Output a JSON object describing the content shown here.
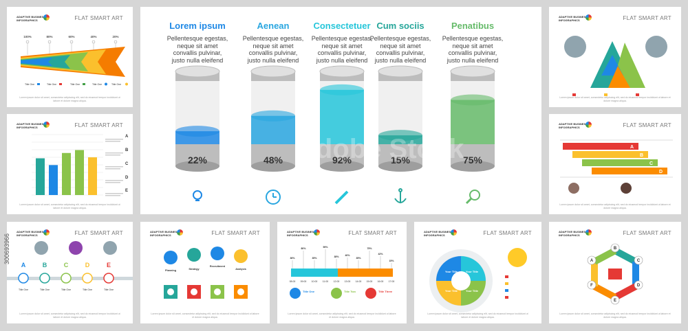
{
  "brand": {
    "logo_line1": "ADAPTIVE BUSINESS",
    "logo_line2": "INFOGRAPHICS",
    "flat_title": "FLAT SMART ART"
  },
  "lorem_footer": "Lorem ipsum dolor sit amet, consectetur adipiscing elit, sed do eiusmod tempor incididunt ut labore et dolore magna aliqua.",
  "title_one": "Title One",
  "colors": {
    "blue": "#1e88e5",
    "sky": "#29b6f6",
    "cyan": "#26c6da",
    "teal": "#26a69a",
    "green": "#66bb6a",
    "yellow": "#fdd835",
    "orange": "#fb8c00",
    "red": "#e53935"
  },
  "top_left": {
    "percents": [
      "100%",
      "80%",
      "60%",
      "40%",
      "20%"
    ]
  },
  "bar_panel": {
    "letters": [
      "A",
      "B",
      "C",
      "D",
      "E"
    ],
    "values": [
      76,
      62,
      87,
      93,
      78
    ]
  },
  "process_panel": {
    "letters": [
      "A",
      "B",
      "C",
      "D",
      "E"
    ]
  },
  "team_panel": {
    "roles": [
      "Planning",
      "Strategy",
      "Recruitment",
      "Analysis"
    ]
  },
  "timeline_panel": {
    "times": [
      "08:00",
      "09:00",
      "10:00",
      "11:00",
      "12:00",
      "13:00",
      "14:00",
      "15:00",
      "16:00",
      "17:00"
    ],
    "values": [
      "36%",
      "80%",
      "35%",
      "59%",
      "38%",
      "40%",
      "35%",
      "75%",
      "42%",
      "15%"
    ],
    "titles": [
      "Title One",
      "Title Two",
      "Title Three"
    ]
  },
  "hex_panel": {
    "letters": [
      "A",
      "B",
      "C",
      "D",
      "E",
      "F"
    ]
  },
  "step_panel": {
    "letters": [
      "A",
      "B",
      "C",
      "D"
    ]
  },
  "wheel_panel": {
    "center": "Your Title"
  },
  "cylinders": [
    {
      "title": "Lorem ipsum",
      "desc": "Pellentesque egestas, neque sit amet convallis pulvinar, justo nulla eleifend augue.",
      "value": 22,
      "label": "22%",
      "color": "#1e88e5",
      "icon": "lightbulb-icon"
    },
    {
      "title": "Aenean",
      "desc": "Pellentesque egestas, neque sit amet convallis pulvinar, justo nulla eleifend augue.",
      "value": 48,
      "label": "48%",
      "color": "#29a6e0",
      "icon": "clock-icon"
    },
    {
      "title": "Consectetuer",
      "desc": "Pellentesque egestas, neque sit amet convallis pulvinar, justo nulla eleifend augue.",
      "value": 92,
      "label": "92%",
      "color": "#26c6da",
      "icon": "pencil-icon"
    },
    {
      "title": "Cum sociis",
      "desc": "Pellentesque egestas, neque sit amet convallis pulvinar, justo nulla eleifend augue.",
      "value": 15,
      "label": "15%",
      "color": "#26a69a",
      "icon": "anchor-icon"
    },
    {
      "title": "Penatibus",
      "desc": "Pellentesque egestas, neque sit amet convallis pulvinar, justo nulla eleifend augue.",
      "value": 75,
      "label": "75%",
      "color": "#66bb6a",
      "icon": "magnifier-icon"
    }
  ],
  "watermark": {
    "stock_id": "300693966",
    "brand": "Adobe Stock"
  }
}
